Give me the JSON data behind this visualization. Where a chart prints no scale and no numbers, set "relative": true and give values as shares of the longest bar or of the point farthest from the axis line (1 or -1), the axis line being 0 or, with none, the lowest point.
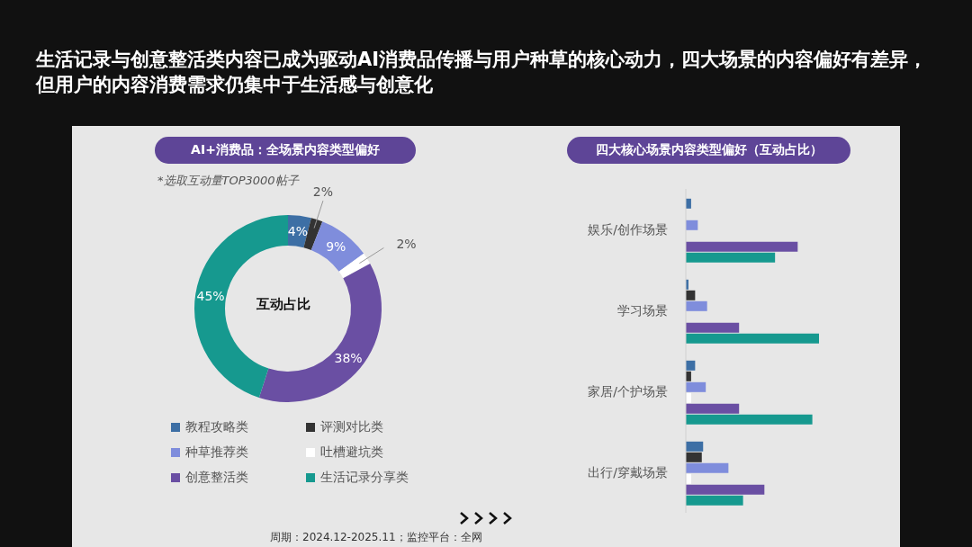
{
  "chart_data": [
    {
      "type": "donut",
      "title": "生活记录与创意整活类内容已成为驱动AI消费品传播与用户种草的核心动力，四大场景的内容偏好有差异，但用户的内容消费需求仍集中于生活感与创意化",
      "subtitle": "AI+消费品：全场景内容类型偏好",
      "categories": [
        "教程攻略类",
        "评测对比类",
        "种草推荐类",
        "吐槽避坑类",
        "创意整活类",
        "生活记录分享类"
      ],
      "values": [
        4,
        2,
        9,
        2,
        38,
        45
      ],
      "colors": [
        "#3d6fa5",
        "#333333",
        "#7f8ddc",
        "#ffffff",
        "#6a4fa3",
        "#16998f"
      ],
      "value_labels": [
        "4%",
        "2%",
        "9%",
        "2%",
        "38%",
        "45%"
      ],
      "legend": "bottom",
      "annotations": [
        "*选取互动量TOP3000帖子",
        "互动占比",
        "周期：2024.12-2025.11；监控平台：全网"
      ]
    },
    {
      "type": "bar",
      "orientation": "horizontal",
      "relative": true,
      "title": "四大核心场景内容类型偏好（互动占比）",
      "categories": [
        "娱乐/创作场景",
        "学习场景",
        "家居/个护场景",
        "出行/穿戴场景"
      ],
      "series": [
        {
          "color": "#3d6fa5",
          "values": [
            0.04,
            0.02,
            0.07,
            0.13
          ]
        },
        {
          "color": "#333333",
          "values": [
            0,
            0.07,
            0.04,
            0.12
          ]
        },
        {
          "color": "#7f8ddc",
          "values": [
            0.09,
            0.16,
            0.15,
            0.32
          ]
        },
        {
          "color": "#ffffff",
          "values": [
            0,
            0,
            0.04,
            0.04
          ]
        },
        {
          "color": "#6a4fa3",
          "values": [
            0.84,
            0.4,
            0.4,
            0.59
          ]
        },
        {
          "color": "#16998f",
          "values": [
            0.67,
            1,
            0.95,
            0.43
          ]
        }
      ]
    }
  ]
}
